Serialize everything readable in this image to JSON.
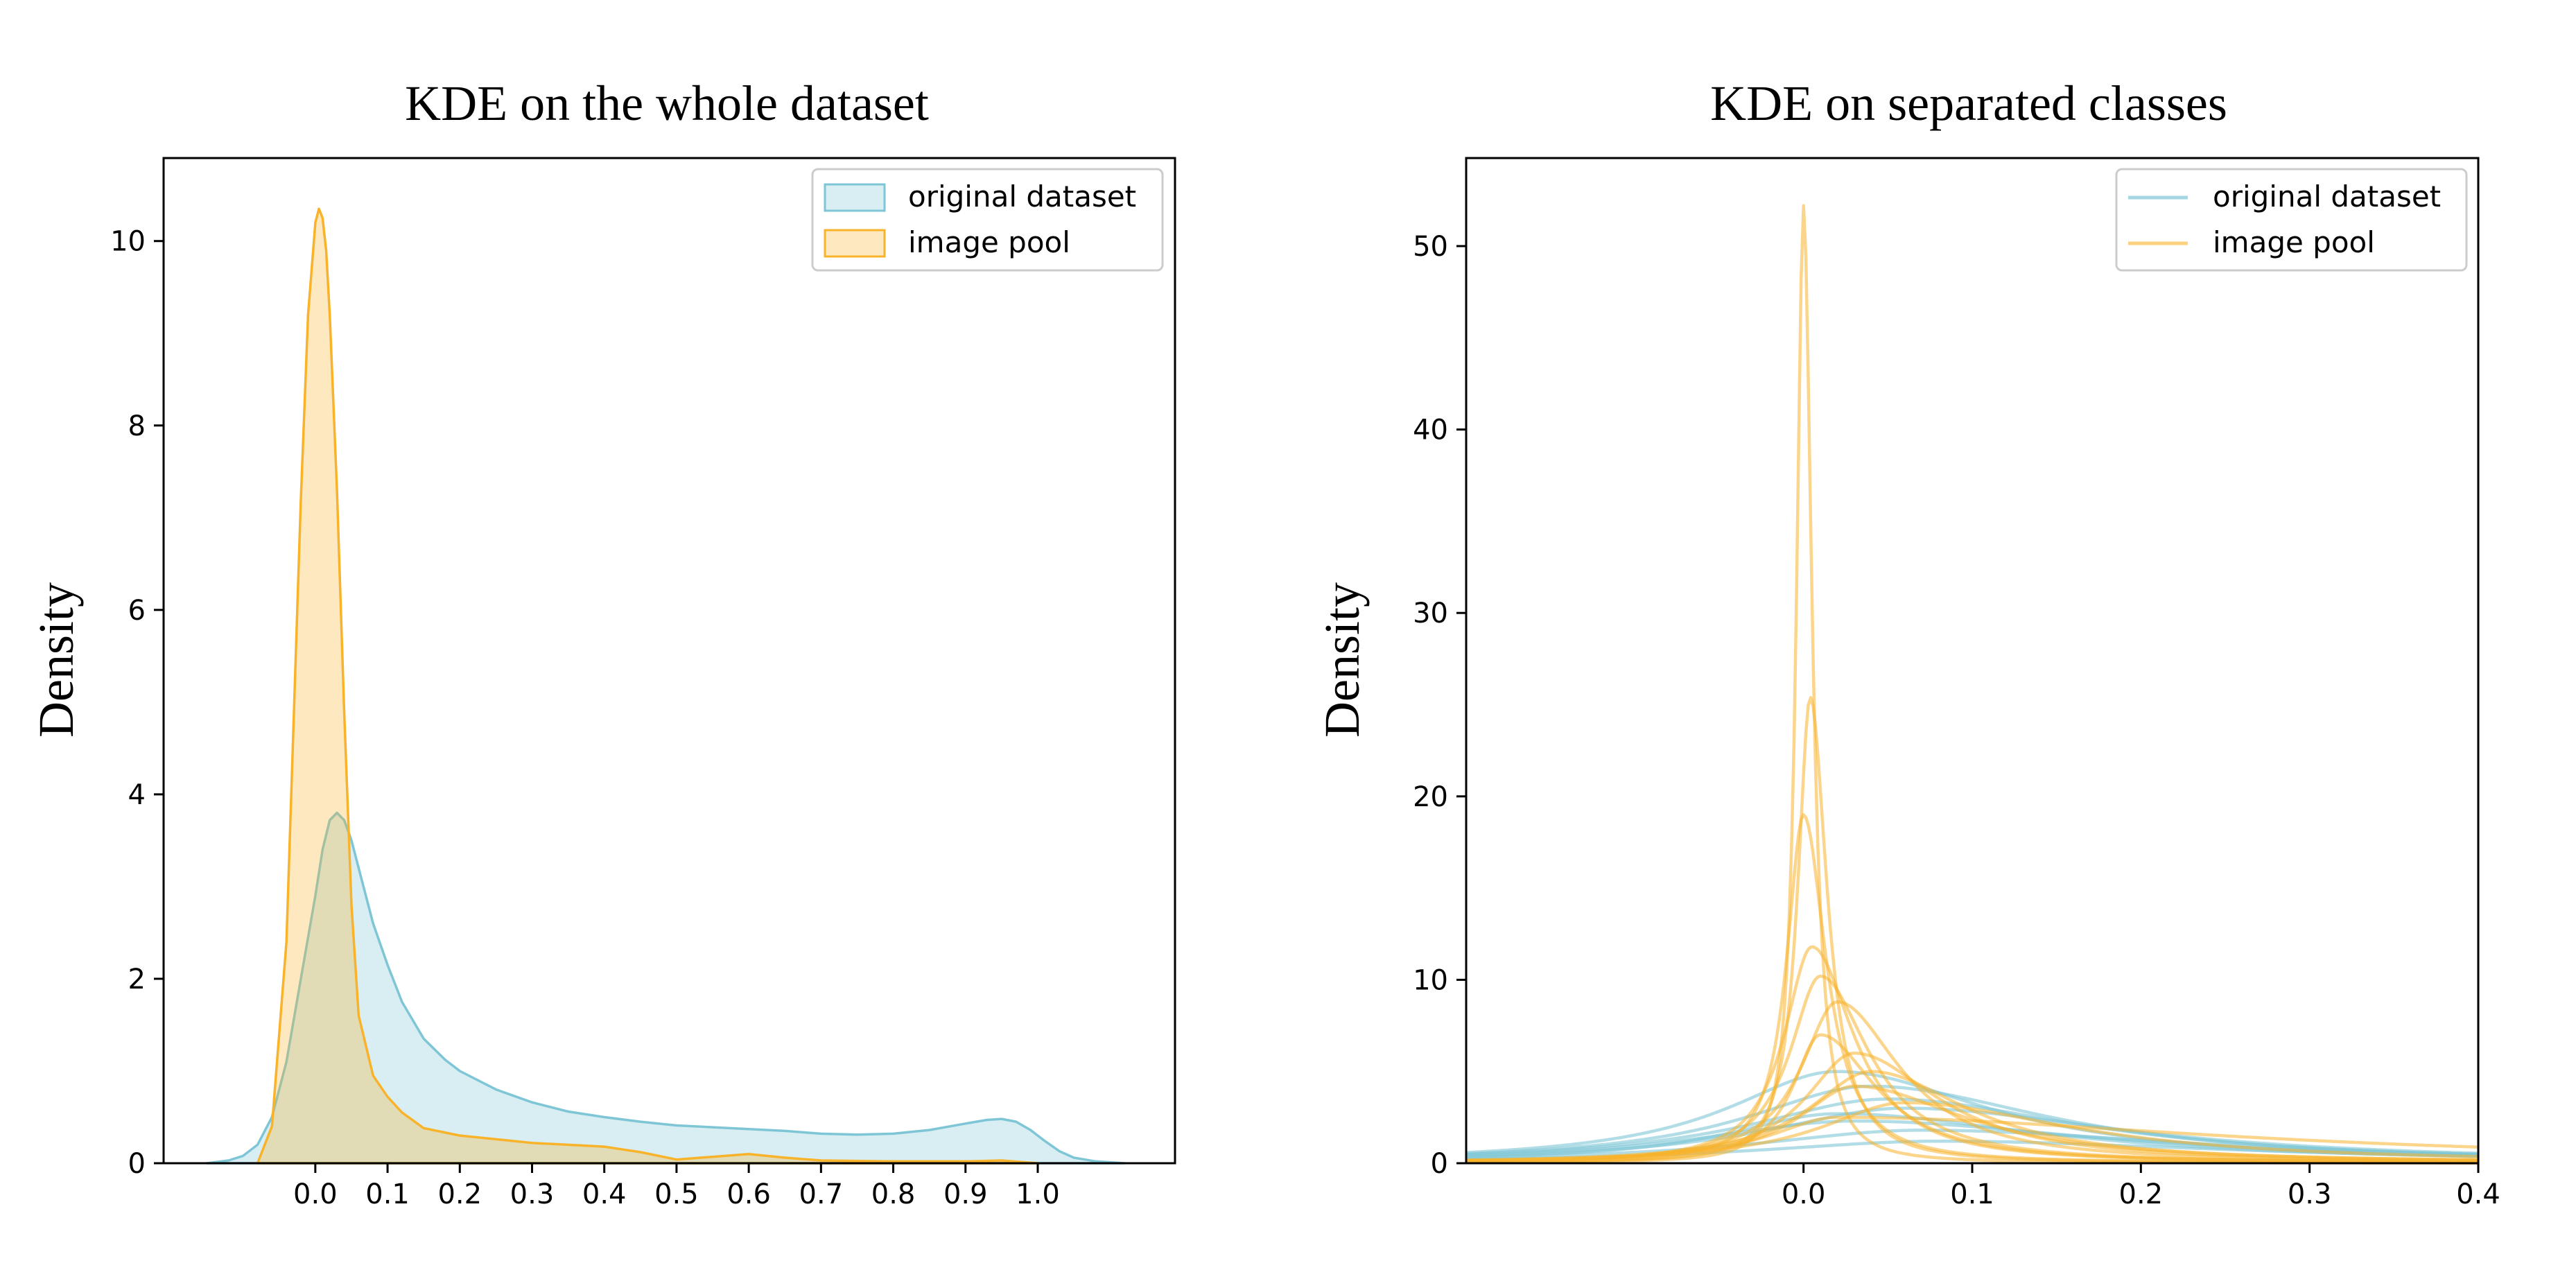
{
  "colors": {
    "original": "#7ec6d6",
    "pool": "#f8b32b"
  },
  "chart_data": [
    {
      "type": "area",
      "title": "KDE on the whole dataset",
      "xlabel": "",
      "ylabel": "Density",
      "xlim": [
        -0.21,
        1.19
      ],
      "ylim": [
        0,
        10.9
      ],
      "xticks": [
        "0.0",
        "0.1",
        "0.2",
        "0.3",
        "0.4",
        "0.5",
        "0.6",
        "0.7",
        "0.8",
        "0.9",
        "1.0"
      ],
      "yticks": [
        "0",
        "2",
        "4",
        "6",
        "8",
        "10"
      ],
      "legend": {
        "position": "top-right",
        "entries": [
          "original dataset",
          "image pool"
        ]
      },
      "grid": false,
      "series": [
        {
          "name": "original dataset",
          "x": [
            -0.15,
            -0.12,
            -0.1,
            -0.08,
            -0.06,
            -0.04,
            -0.02,
            0.0,
            0.01,
            0.02,
            0.03,
            0.04,
            0.05,
            0.06,
            0.08,
            0.1,
            0.12,
            0.15,
            0.18,
            0.2,
            0.25,
            0.3,
            0.35,
            0.4,
            0.45,
            0.5,
            0.55,
            0.6,
            0.65,
            0.7,
            0.75,
            0.8,
            0.85,
            0.9,
            0.93,
            0.95,
            0.97,
            0.99,
            1.01,
            1.03,
            1.05,
            1.08,
            1.12
          ],
          "y": [
            0.0,
            0.03,
            0.08,
            0.2,
            0.5,
            1.1,
            2.0,
            2.9,
            3.4,
            3.72,
            3.8,
            3.72,
            3.5,
            3.2,
            2.6,
            2.15,
            1.75,
            1.35,
            1.12,
            1.0,
            0.8,
            0.66,
            0.56,
            0.5,
            0.45,
            0.41,
            0.39,
            0.37,
            0.35,
            0.32,
            0.31,
            0.32,
            0.36,
            0.43,
            0.47,
            0.48,
            0.45,
            0.36,
            0.24,
            0.13,
            0.06,
            0.02,
            0.0
          ]
        },
        {
          "name": "image pool",
          "x": [
            -0.08,
            -0.06,
            -0.04,
            -0.03,
            -0.02,
            -0.01,
            0.0,
            0.005,
            0.01,
            0.015,
            0.02,
            0.03,
            0.04,
            0.05,
            0.06,
            0.08,
            0.1,
            0.12,
            0.15,
            0.2,
            0.25,
            0.3,
            0.35,
            0.4,
            0.45,
            0.5,
            0.55,
            0.6,
            0.65,
            0.7,
            0.8,
            0.9,
            0.95,
            1.0
          ],
          "y": [
            0.0,
            0.4,
            2.4,
            4.8,
            7.2,
            9.2,
            10.2,
            10.35,
            10.25,
            9.9,
            9.2,
            7.3,
            4.9,
            2.8,
            1.6,
            0.95,
            0.72,
            0.55,
            0.38,
            0.3,
            0.26,
            0.22,
            0.2,
            0.18,
            0.12,
            0.04,
            0.07,
            0.1,
            0.06,
            0.03,
            0.02,
            0.02,
            0.03,
            0.0
          ]
        }
      ]
    },
    {
      "type": "line",
      "title": "KDE on separated classes",
      "xlabel": "",
      "ylabel": "Density",
      "xlim": [
        -0.2,
        0.4
      ],
      "ylim": [
        0,
        54.8
      ],
      "xticks": [
        "0.0",
        "0.1",
        "0.2",
        "0.3",
        "0.4"
      ],
      "yticks": [
        "0",
        "10",
        "20",
        "30",
        "40",
        "50"
      ],
      "legend": {
        "position": "top-right",
        "entries": [
          "original dataset",
          "image pool"
        ]
      },
      "grid": false,
      "series": [
        {
          "name": "original dataset",
          "peaks": [
            {
              "mu": 0.02,
              "h": 5.0,
              "wl": 0.08,
              "wr": 0.11
            },
            {
              "mu": 0.04,
              "h": 4.2,
              "wl": 0.09,
              "wr": 0.13
            },
            {
              "mu": 0.05,
              "h": 3.5,
              "wl": 0.1,
              "wr": 0.14
            },
            {
              "mu": 0.06,
              "h": 3.0,
              "wl": 0.1,
              "wr": 0.16
            },
            {
              "mu": 0.03,
              "h": 2.3,
              "wl": 0.11,
              "wr": 0.18
            },
            {
              "mu": 0.07,
              "h": 1.8,
              "wl": 0.12,
              "wr": 0.2
            },
            {
              "mu": 0.02,
              "h": 2.7,
              "wl": 0.08,
              "wr": 0.15
            },
            {
              "mu": 0.08,
              "h": 1.2,
              "wl": 0.13,
              "wr": 0.22
            }
          ]
        },
        {
          "name": "image pool",
          "peaks": [
            {
              "mu": 0.0,
              "h": 52.2,
              "wl": 0.005,
              "wr": 0.006
            },
            {
              "mu": 0.004,
              "h": 25.4,
              "wl": 0.009,
              "wr": 0.012
            },
            {
              "mu": 0.0,
              "h": 19.0,
              "wl": 0.012,
              "wr": 0.016
            },
            {
              "mu": 0.005,
              "h": 11.8,
              "wl": 0.02,
              "wr": 0.03
            },
            {
              "mu": 0.01,
              "h": 10.2,
              "wl": 0.022,
              "wr": 0.035
            },
            {
              "mu": 0.02,
              "h": 8.8,
              "wl": 0.026,
              "wr": 0.045
            },
            {
              "mu": 0.03,
              "h": 6.0,
              "wl": 0.035,
              "wr": 0.06
            },
            {
              "mu": 0.04,
              "h": 5.0,
              "wl": 0.045,
              "wr": 0.07
            },
            {
              "mu": 0.03,
              "h": 4.2,
              "wl": 0.04,
              "wr": 0.08
            },
            {
              "mu": 0.06,
              "h": 3.3,
              "wl": 0.06,
              "wr": 0.12
            },
            {
              "mu": 0.01,
              "h": 7.0,
              "wl": 0.02,
              "wr": 0.04
            },
            {
              "mu": 0.02,
              "h": 2.5,
              "wl": 0.05,
              "wr": 0.28
            }
          ]
        }
      ]
    }
  ]
}
